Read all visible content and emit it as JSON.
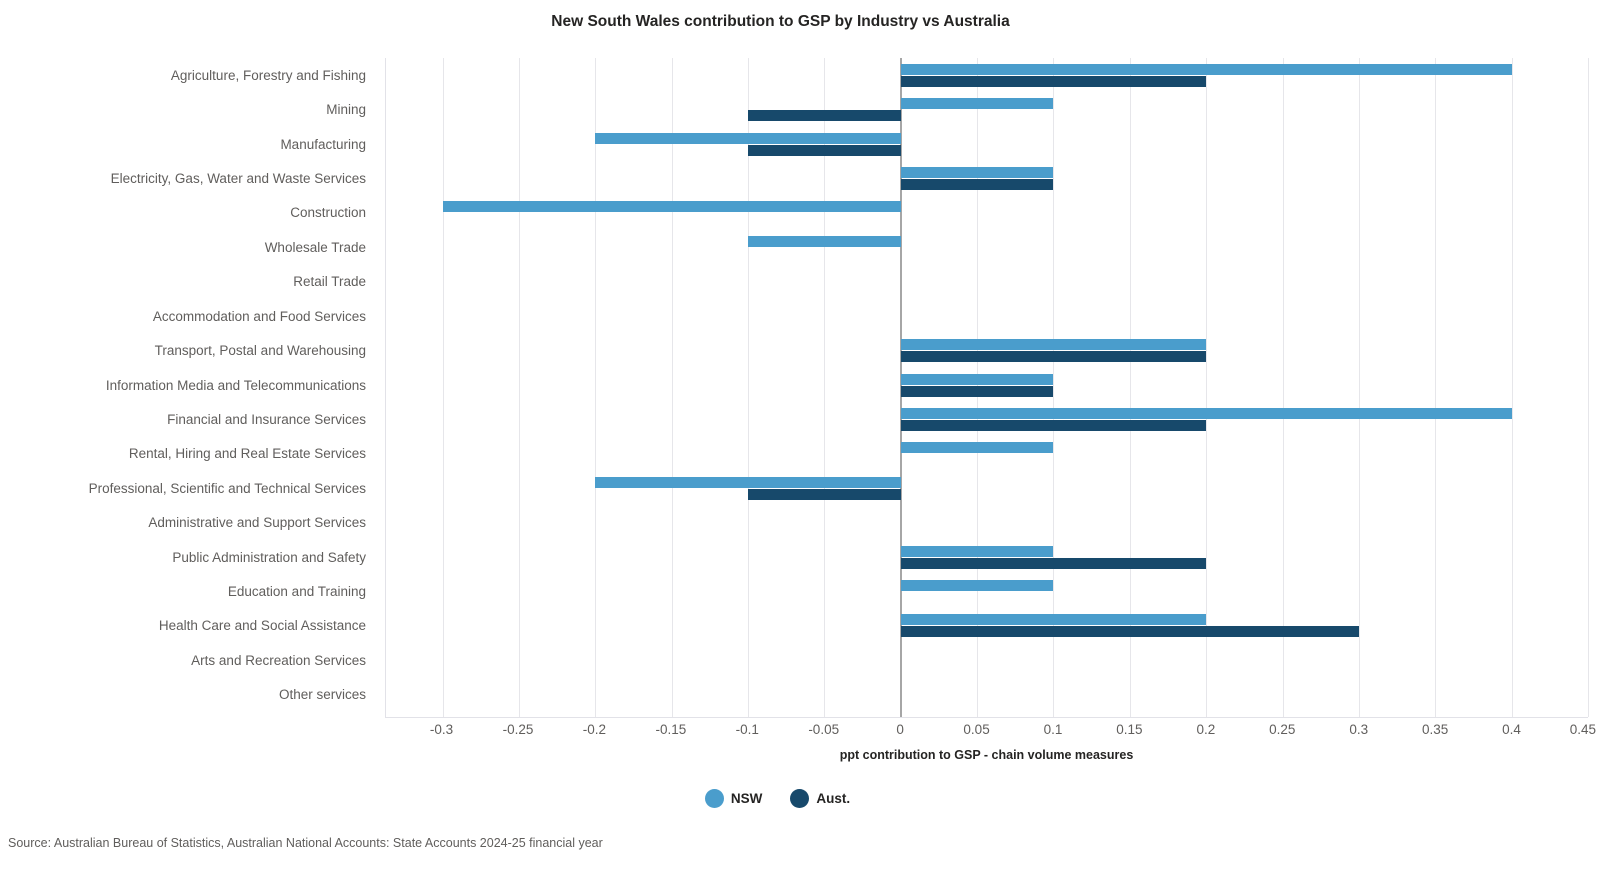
{
  "chart_data": {
    "type": "bar",
    "orientation": "horizontal",
    "title": "New South Wales contribution to GSP by Industry vs Australia",
    "xlabel": "ppt contribution to GSP - chain volume measures",
    "categories": [
      "Agriculture, Forestry and Fishing",
      "Mining",
      "Manufacturing",
      "Electricity, Gas, Water and Waste Services",
      "Construction",
      "Wholesale Trade",
      "Retail Trade",
      "Accommodation and Food Services",
      "Transport, Postal and Warehousing",
      "Information Media and Telecommunications",
      "Financial and Insurance Services",
      "Rental, Hiring and Real Estate Services",
      "Professional, Scientific and Technical Services",
      "Administrative and Support Services",
      "Public Administration and Safety",
      "Education and Training",
      "Health Care and Social Assistance",
      "Arts and Recreation Services",
      "Other services"
    ],
    "series": [
      {
        "name": "NSW",
        "color": "#4A9DCC",
        "values": [
          0.4,
          0.1,
          -0.2,
          0.1,
          -0.3,
          -0.1,
          0,
          0,
          0.2,
          0.1,
          0.4,
          0.1,
          -0.2,
          0,
          0.1,
          0.1,
          0.2,
          0,
          0
        ]
      },
      {
        "name": "Aust.",
        "color": "#17496B",
        "values": [
          0.2,
          -0.1,
          -0.1,
          0.1,
          0,
          0,
          0,
          0,
          0.2,
          0.1,
          0.2,
          0,
          -0.1,
          0,
          0.2,
          0,
          0.3,
          0,
          0
        ]
      }
    ],
    "xticks": [
      "-0.3",
      "-0.25",
      "-0.2",
      "-0.15",
      "-0.1",
      "-0.05",
      "0",
      "0.05",
      "0.1",
      "0.15",
      "0.2",
      "0.25",
      "0.3",
      "0.35",
      "0.4",
      "0.45"
    ],
    "xlim": [
      -0.337,
      0.45
    ],
    "grid": true,
    "legend_position": "bottom"
  },
  "source_note": "Source: Australian Bureau of Statistics, Australian National Accounts: State Accounts 2024-25 financial year",
  "colors": {
    "nsw": "#4A9DCC",
    "aust": "#17496B",
    "gridline": "#e6e6ea",
    "zero_line": "#a6a6a6",
    "label_text": "#605E5C",
    "title_text": "#252423"
  }
}
